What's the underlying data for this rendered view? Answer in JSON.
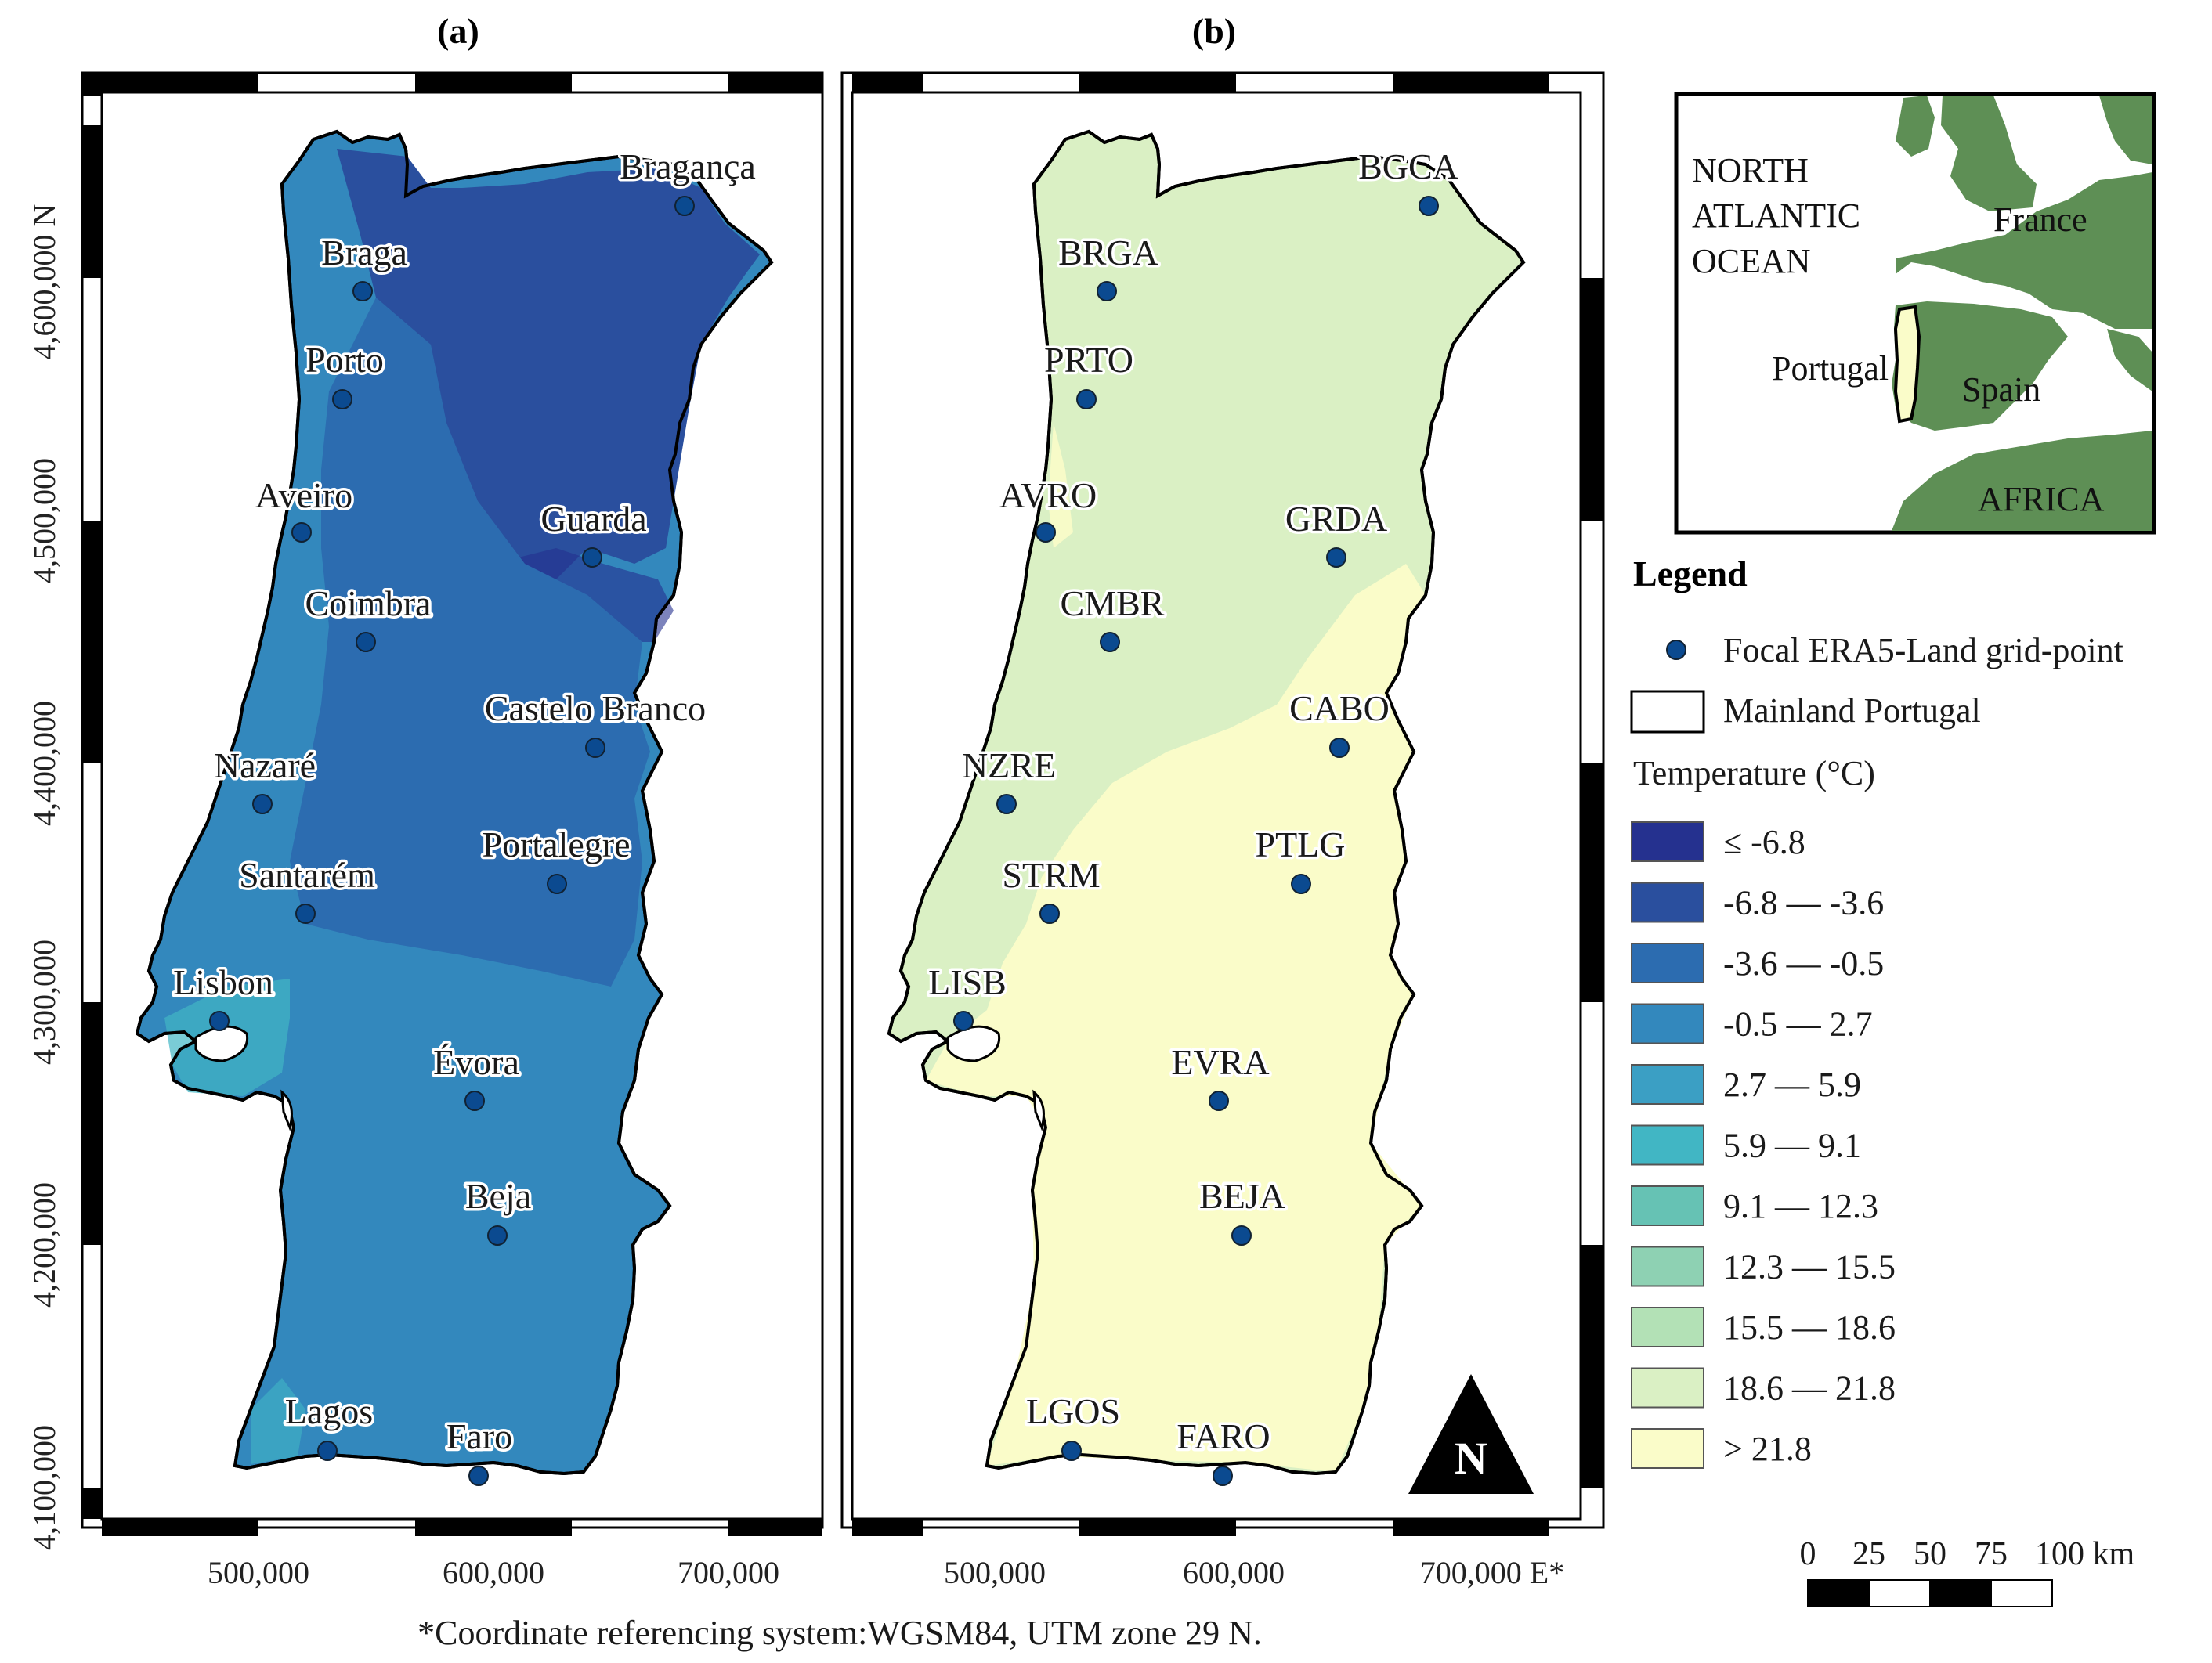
{
  "panels": {
    "a": {
      "title": "(a)"
    },
    "b": {
      "title": "(b)"
    }
  },
  "cities_a": [
    "Bragança",
    "Braga",
    "Porto",
    "Aveiro",
    "Guarda",
    "Coimbra",
    "Castelo Branco",
    "Nazaré",
    "Portalegre",
    "Santarém",
    "Lisbon",
    "Évora",
    "Beja",
    "Lagos",
    "Faro"
  ],
  "cities_b": [
    "BGCA",
    "BRGA",
    "PRTO",
    "AVRO",
    "GRDA",
    "CMBR",
    "CABO",
    "NZRE",
    "PTLG",
    "STRM",
    "LISB",
    "EVRA",
    "BEJA",
    "LGOS",
    "FARO"
  ],
  "y_ticks": [
    "4,600,000 N",
    "4,500,000",
    "4,400,000",
    "4,300,000",
    "4,200,000",
    "4,100,000"
  ],
  "x_ticks_a": [
    "500,000",
    "600,000",
    "700,000"
  ],
  "x_ticks_b": [
    "500,000",
    "600,000",
    "700,000 E*"
  ],
  "north_arrow": "N",
  "footnote": "*Coordinate referencing system:WGSM84, UTM zone 29 N.",
  "inset": {
    "ocean_label_1": "NORTH",
    "ocean_label_2": "ATLANTIC",
    "ocean_label_3": "OCEAN",
    "france": "France",
    "portugal": "Portugal",
    "spain": "Spain",
    "africa": "AFRICA"
  },
  "legend": {
    "title": "Legend",
    "point_label": "Focal ERA5-Land grid-point",
    "boundary_label": "Mainland Portugal",
    "temp_title": "Temperature (°C)",
    "classes": [
      {
        "label": "≤ -6.8",
        "color": "#25318f"
      },
      {
        "label": "-6.8 — -3.6",
        "color": "#2a4f9e"
      },
      {
        "label": "-3.6 — -0.5",
        "color": "#2c6cb0"
      },
      {
        "label": "-0.5 — 2.7",
        "color": "#3388bd"
      },
      {
        "label": "2.7 — 5.9",
        "color": "#3b9fc4"
      },
      {
        "label": "5.9 — 9.1",
        "color": "#41b6c4"
      },
      {
        "label": "9.1 — 12.3",
        "color": "#66c2b4"
      },
      {
        "label": "12.3 — 15.5",
        "color": "#8ed1b3"
      },
      {
        "label": "15.5 — 18.6",
        "color": "#b3e1b6"
      },
      {
        "label": "18.6 — 21.8",
        "color": "#daf0c4"
      },
      {
        "label": "> 21.8",
        "color": "#fafcc9"
      }
    ]
  },
  "scale_bar": [
    "0",
    "25",
    "50",
    "75",
    "100 km"
  ],
  "colors": {
    "point": "#0b4a90",
    "inset_land": "#5e8f55",
    "map_frame": "#000000"
  }
}
